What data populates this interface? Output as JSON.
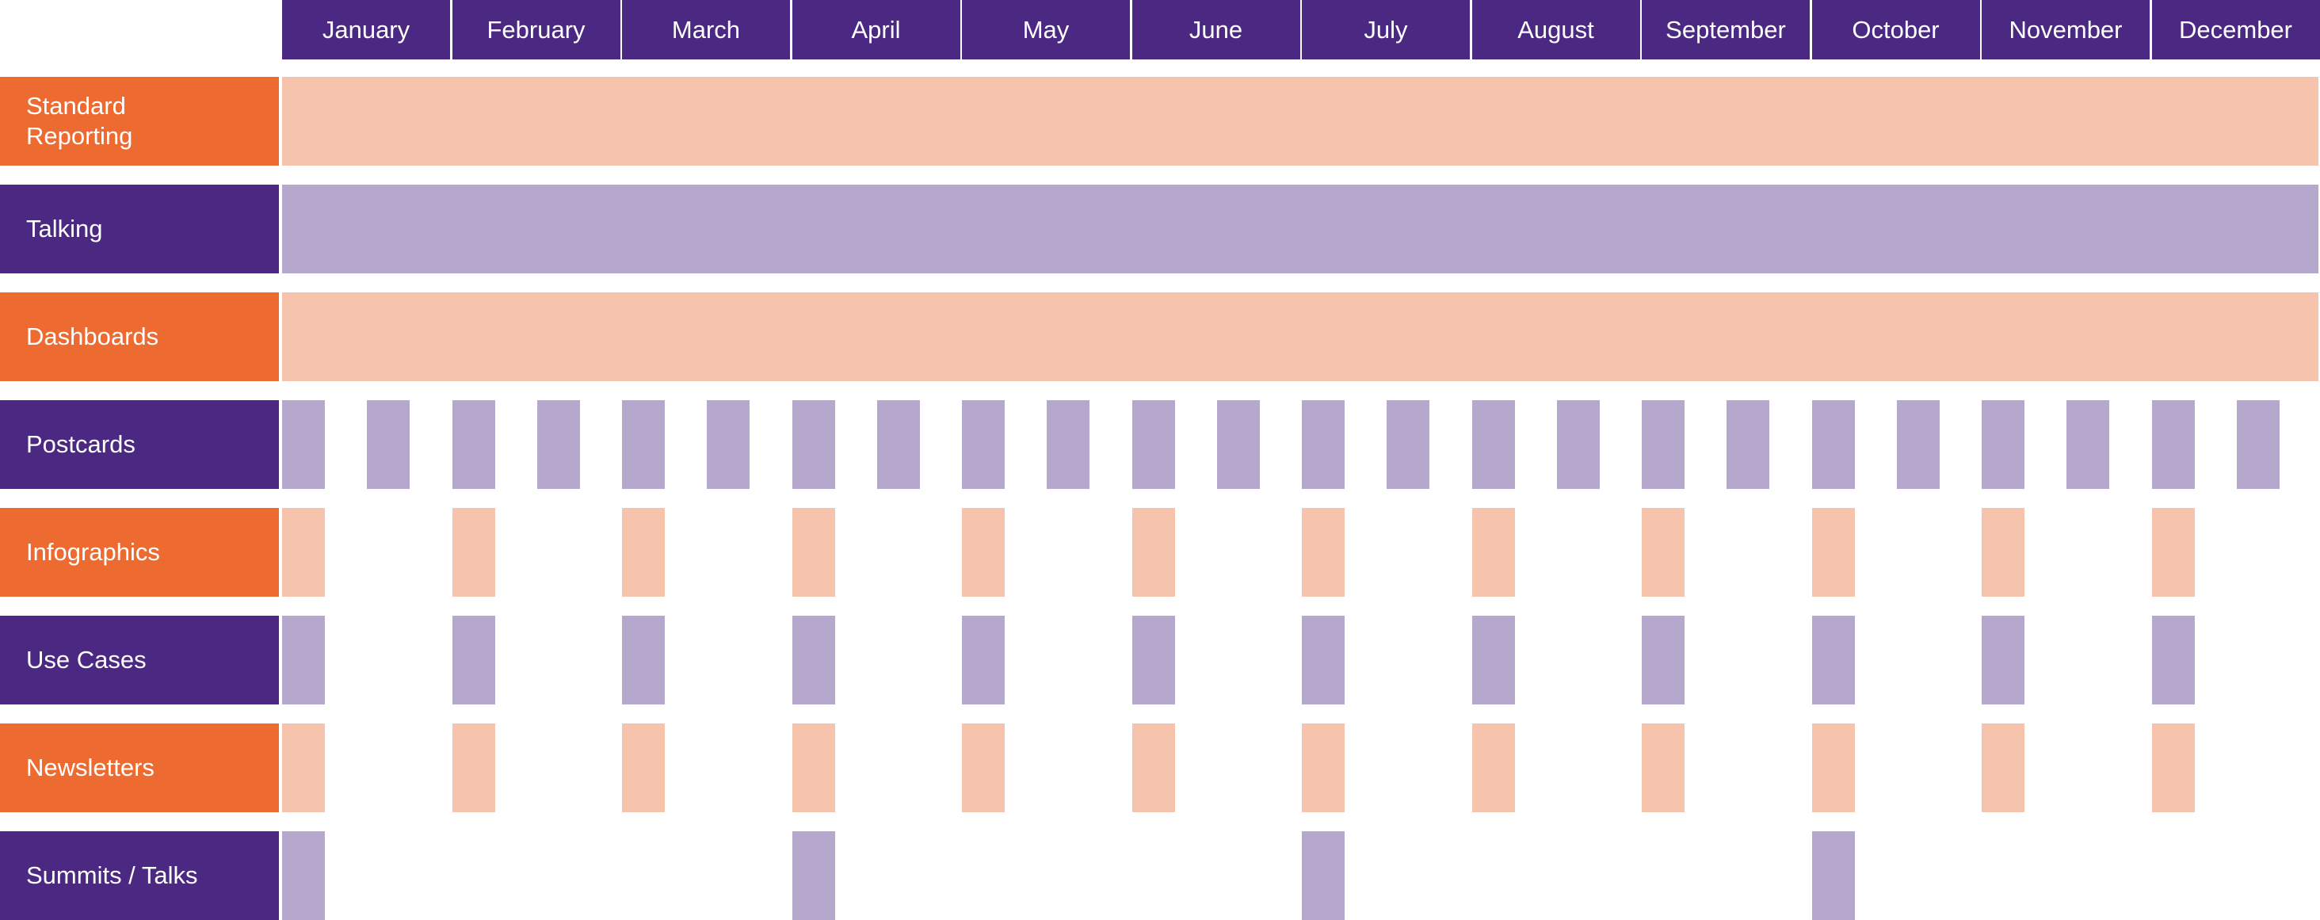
{
  "months": [
    "January",
    "February",
    "March",
    "April",
    "May",
    "June",
    "July",
    "August",
    "September",
    "October",
    "November",
    "December"
  ],
  "colors": {
    "header": "#4b2882",
    "orange": "#ed6b31",
    "purple": "#4b2882",
    "light_orange": "#f6c4ad",
    "light_purple": "#b6a8cd"
  },
  "rows": [
    {
      "label": "Standard\nReporting",
      "color": "orange",
      "kind": "span"
    },
    {
      "label": "Talking",
      "color": "purple",
      "kind": "span"
    },
    {
      "label": "Dashboards",
      "color": "orange",
      "kind": "span"
    },
    {
      "label": "Postcards",
      "color": "purple",
      "kind": "semimonthly"
    },
    {
      "label": "Infographics",
      "color": "orange",
      "kind": "monthly"
    },
    {
      "label": "Use Cases",
      "color": "purple",
      "kind": "monthly"
    },
    {
      "label": "Newsletters",
      "color": "orange",
      "kind": "monthly"
    },
    {
      "label": "Summits / Talks",
      "color": "purple",
      "kind": "quarterly"
    }
  ]
}
